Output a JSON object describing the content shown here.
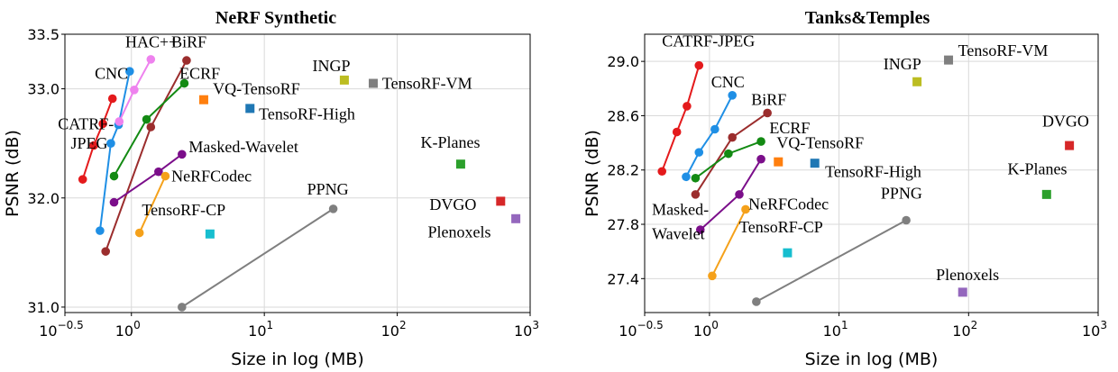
{
  "chart_data": [
    {
      "type": "scatter",
      "title": "NeRF Synthetic",
      "xlabel": "Size in log (MB)",
      "ylabel": "PSNR (dB)",
      "xscale": "log",
      "xlim": [
        0.316,
        1000
      ],
      "ylim": [
        30.95,
        33.5
      ],
      "xticks": [
        {
          "v": 0.316,
          "base": "10",
          "exp": "−0.5"
        },
        {
          "v": 1,
          "base": "10",
          "exp": "0"
        },
        {
          "v": 10,
          "base": "10",
          "exp": "1"
        },
        {
          "v": 100,
          "base": "10",
          "exp": "2"
        },
        {
          "v": 1000,
          "base": "10",
          "exp": "3"
        }
      ],
      "yticks": [
        {
          "v": 31.0,
          "t": "31.0"
        },
        {
          "v": 32.0,
          "t": "32.0"
        },
        {
          "v": 33.0,
          "t": "33.0"
        },
        {
          "v": 33.5,
          "t": "33.5"
        }
      ],
      "grid": true,
      "series": [
        {
          "name": "CATRF-JPEG",
          "color": "#e41a1c",
          "marker": "circle",
          "points": [
            [
              0.43,
              32.17
            ],
            [
              0.52,
              32.48
            ],
            [
              0.61,
              32.68
            ],
            [
              0.72,
              32.91
            ]
          ]
        },
        {
          "name": "CNC",
          "color": "#1f8fe5",
          "marker": "circle",
          "points": [
            [
              0.58,
              31.7
            ],
            [
              0.7,
              32.5
            ],
            [
              0.8,
              32.67
            ],
            [
              0.97,
              33.16
            ]
          ]
        },
        {
          "name": "HAC++",
          "color": "#ee82ee",
          "marker": "circle",
          "points": [
            [
              0.81,
              32.7
            ],
            [
              1.05,
              32.99
            ],
            [
              1.4,
              33.27
            ]
          ]
        },
        {
          "name": "BiRF",
          "color": "#9b2d2d",
          "marker": "circle",
          "points": [
            [
              0.64,
              31.51
            ],
            [
              1.4,
              32.65
            ],
            [
              2.6,
              33.26
            ]
          ]
        },
        {
          "name": "ECRF",
          "color": "#138a13",
          "marker": "circle",
          "points": [
            [
              0.74,
              32.2
            ],
            [
              1.3,
              32.72
            ],
            [
              2.5,
              33.05
            ]
          ]
        },
        {
          "name": "Masked-Wavelet",
          "color": "#7b0e8a",
          "marker": "circle",
          "points": [
            [
              0.74,
              31.96
            ],
            [
              1.6,
              32.24
            ],
            [
              2.4,
              32.4
            ]
          ]
        },
        {
          "name": "NeRFCodec",
          "color": "#f5a11a",
          "marker": "circle",
          "points": [
            [
              1.15,
              31.68
            ],
            [
              1.8,
              32.2
            ]
          ]
        },
        {
          "name": "PPNG",
          "color": "#7f7f7f",
          "marker": "circle",
          "points": [
            [
              2.4,
              31.0
            ],
            [
              33.0,
              31.9
            ]
          ]
        },
        {
          "name": "INGP",
          "color": "#bcbd22",
          "marker": "square",
          "points": [
            [
              40.0,
              33.08
            ]
          ]
        },
        {
          "name": "TensoRF-VM",
          "color": "#7f7f7f",
          "marker": "square",
          "points": [
            [
              66.0,
              33.05
            ]
          ]
        },
        {
          "name": "VQ-TensoRF",
          "color": "#ff7f0e",
          "marker": "square",
          "points": [
            [
              3.5,
              32.9
            ]
          ]
        },
        {
          "name": "TensoRF-High",
          "color": "#1f77b4",
          "marker": "square",
          "points": [
            [
              7.8,
              32.82
            ]
          ]
        },
        {
          "name": "K-Planes",
          "color": "#2ca02c",
          "marker": "square",
          "points": [
            [
              300.0,
              32.31
            ]
          ]
        },
        {
          "name": "DVGO",
          "color": "#d62728",
          "marker": "square",
          "points": [
            [
              600.0,
              31.97
            ]
          ]
        },
        {
          "name": "Plenoxels",
          "color": "#9467bd",
          "marker": "square",
          "points": [
            [
              780.0,
              31.81
            ]
          ]
        },
        {
          "name": "TensoRF-CP",
          "color": "#17becf",
          "marker": "square",
          "points": [
            [
              3.9,
              31.67
            ]
          ]
        }
      ],
      "annotations": [
        {
          "text": "HAC++",
          "x": 0.9,
          "y": 33.38,
          "anchor": "start"
        },
        {
          "text": "BiRF",
          "x": 2.0,
          "y": 33.38,
          "anchor": "start"
        },
        {
          "text": "CNC",
          "x": 0.53,
          "y": 33.09,
          "anchor": "start"
        },
        {
          "text": "ECRF",
          "x": 2.3,
          "y": 33.09,
          "anchor": "start"
        },
        {
          "text": "INGP",
          "x": 23.0,
          "y": 33.16,
          "anchor": "start"
        },
        {
          "text": "TensoRF-VM",
          "x": 77.0,
          "y": 33.0,
          "anchor": "start"
        },
        {
          "text": "VQ-TensoRF",
          "x": 4.1,
          "y": 32.95,
          "anchor": "start"
        },
        {
          "text": "TensoRF-High",
          "x": 9.1,
          "y": 32.72,
          "anchor": "start"
        },
        {
          "text": "CATRF-",
          "x": 0.28,
          "y": 32.63,
          "anchor": "start"
        },
        {
          "text": "JPEG",
          "x": 0.35,
          "y": 32.45,
          "anchor": "start"
        },
        {
          "text": "Masked-Wavelet",
          "x": 2.7,
          "y": 32.42,
          "anchor": "start"
        },
        {
          "text": "NeRFCodec",
          "x": 2.0,
          "y": 32.15,
          "anchor": "start"
        },
        {
          "text": "K-Planes",
          "x": 150.0,
          "y": 32.46,
          "anchor": "start"
        },
        {
          "text": "PPNG",
          "x": 21.0,
          "y": 32.03,
          "anchor": "start"
        },
        {
          "text": "DVGO",
          "x": 175.0,
          "y": 31.89,
          "anchor": "start"
        },
        {
          "text": "TensoRF-CP",
          "x": 1.2,
          "y": 31.84,
          "anchor": "start"
        },
        {
          "text": "Plenoxels",
          "x": 170.0,
          "y": 31.64,
          "anchor": "start"
        }
      ]
    },
    {
      "type": "scatter",
      "title": "Tanks&Temples",
      "xlabel": "Size in log (MB)",
      "ylabel": "PSNR (dB)",
      "xscale": "log",
      "xlim": [
        0.316,
        1000
      ],
      "ylim": [
        27.15,
        29.2
      ],
      "xticks": [
        {
          "v": 0.316,
          "base": "10",
          "exp": "−0.5"
        },
        {
          "v": 1,
          "base": "10",
          "exp": "0"
        },
        {
          "v": 10,
          "base": "10",
          "exp": "1"
        },
        {
          "v": 100,
          "base": "10",
          "exp": "2"
        },
        {
          "v": 1000,
          "base": "10",
          "exp": "3"
        }
      ],
      "yticks": [
        {
          "v": 27.4,
          "t": "27.4"
        },
        {
          "v": 27.8,
          "t": "27.8"
        },
        {
          "v": 28.2,
          "t": "28.2"
        },
        {
          "v": 28.6,
          "t": "28.6"
        },
        {
          "v": 29.0,
          "t": "29.0"
        }
      ],
      "grid": true,
      "series": [
        {
          "name": "CATRF-JPEG",
          "color": "#e41a1c",
          "marker": "circle",
          "points": [
            [
              0.43,
              28.19
            ],
            [
              0.56,
              28.48
            ],
            [
              0.67,
              28.67
            ],
            [
              0.83,
              28.97
            ]
          ]
        },
        {
          "name": "CNC",
          "color": "#1f8fe5",
          "marker": "circle",
          "points": [
            [
              0.66,
              28.15
            ],
            [
              0.83,
              28.33
            ],
            [
              1.1,
              28.5
            ],
            [
              1.5,
              28.75
            ]
          ]
        },
        {
          "name": "BiRF",
          "color": "#9b2d2d",
          "marker": "circle",
          "points": [
            [
              0.78,
              28.02
            ],
            [
              1.5,
              28.44
            ],
            [
              2.8,
              28.62
            ]
          ]
        },
        {
          "name": "ECRF",
          "color": "#138a13",
          "marker": "circle",
          "points": [
            [
              0.78,
              28.14
            ],
            [
              1.4,
              28.32
            ],
            [
              2.5,
              28.41
            ]
          ]
        },
        {
          "name": "Masked-Wavelet",
          "color": "#7b0e8a",
          "marker": "circle",
          "points": [
            [
              0.85,
              27.76
            ],
            [
              1.7,
              28.02
            ],
            [
              2.5,
              28.28
            ]
          ]
        },
        {
          "name": "NeRFCodec",
          "color": "#f5a11a",
          "marker": "circle",
          "points": [
            [
              1.05,
              27.42
            ],
            [
              1.9,
              27.91
            ]
          ]
        },
        {
          "name": "PPNG",
          "color": "#7f7f7f",
          "marker": "circle",
          "points": [
            [
              2.3,
              27.23
            ],
            [
              33.0,
              27.83
            ]
          ]
        },
        {
          "name": "TensoRF-VM",
          "color": "#7f7f7f",
          "marker": "square",
          "points": [
            [
              70.0,
              29.01
            ]
          ]
        },
        {
          "name": "INGP",
          "color": "#bcbd22",
          "marker": "square",
          "points": [
            [
              40.0,
              28.85
            ]
          ]
        },
        {
          "name": "DVGO",
          "color": "#d62728",
          "marker": "square",
          "points": [
            [
              600.0,
              28.38
            ]
          ]
        },
        {
          "name": "VQ-TensoRF",
          "color": "#ff7f0e",
          "marker": "square",
          "points": [
            [
              3.4,
              28.26
            ]
          ]
        },
        {
          "name": "TensoRF-High",
          "color": "#1f77b4",
          "marker": "square",
          "points": [
            [
              6.5,
              28.25
            ]
          ]
        },
        {
          "name": "K-Planes",
          "color": "#2ca02c",
          "marker": "square",
          "points": [
            [
              400.0,
              28.02
            ]
          ]
        },
        {
          "name": "TensoRF-CP",
          "color": "#17becf",
          "marker": "square",
          "points": [
            [
              4.0,
              27.59
            ]
          ]
        },
        {
          "name": "Plenoxels",
          "color": "#9467bd",
          "marker": "square",
          "points": [
            [
              90.0,
              27.3
            ]
          ]
        }
      ],
      "annotations": [
        {
          "text": "CATRF-JPEG",
          "x": 0.43,
          "y": 29.11,
          "anchor": "start"
        },
        {
          "text": "TensoRF-VM",
          "x": 83.0,
          "y": 29.04,
          "anchor": "start"
        },
        {
          "text": "CNC",
          "x": 1.03,
          "y": 28.81,
          "anchor": "start"
        },
        {
          "text": "INGP",
          "x": 22.0,
          "y": 28.94,
          "anchor": "start"
        },
        {
          "text": "BiRF",
          "x": 2.1,
          "y": 28.68,
          "anchor": "start"
        },
        {
          "text": "ECRF",
          "x": 2.9,
          "y": 28.47,
          "anchor": "start"
        },
        {
          "text": "DVGO",
          "x": 370.0,
          "y": 28.52,
          "anchor": "start"
        },
        {
          "text": "VQ-TensoRF",
          "x": 3.3,
          "y": 28.36,
          "anchor": "start"
        },
        {
          "text": "TensoRF-High",
          "x": 7.8,
          "y": 28.15,
          "anchor": "start"
        },
        {
          "text": "K-Planes",
          "x": 200.0,
          "y": 28.17,
          "anchor": "start"
        },
        {
          "text": "PPNG",
          "x": 21.0,
          "y": 27.99,
          "anchor": "start"
        },
        {
          "text": "NeRFCodec",
          "x": 2.0,
          "y": 27.91,
          "anchor": "start"
        },
        {
          "text": "Masked-",
          "x": 0.36,
          "y": 27.87,
          "anchor": "start"
        },
        {
          "text": "Wavelet",
          "x": 0.36,
          "y": 27.69,
          "anchor": "start"
        },
        {
          "text": "TensoRF-CP",
          "x": 1.7,
          "y": 27.74,
          "anchor": "start"
        },
        {
          "text": "Plenoxels",
          "x": 56.0,
          "y": 27.39,
          "anchor": "start"
        }
      ]
    }
  ]
}
